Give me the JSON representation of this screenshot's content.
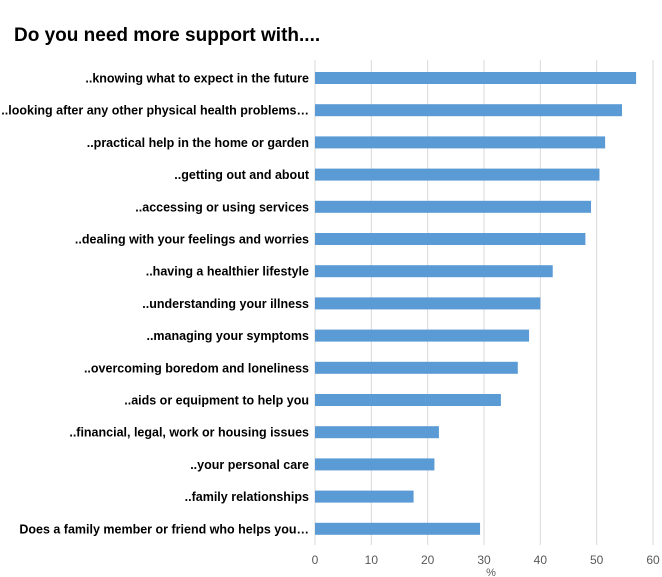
{
  "chart_data": {
    "type": "bar",
    "orientation": "horizontal",
    "title": "Do you need more support with....",
    "xlabel": "%",
    "ylabel": "",
    "xlim": [
      0,
      60
    ],
    "xticks": [
      0,
      10,
      20,
      30,
      40,
      50,
      60
    ],
    "grid": true,
    "bar_color": "#5b9bd5",
    "categories": [
      "..knowing what to expect in the future",
      "..looking after any other physical health problems…",
      "..practical help in the home or garden",
      "..getting out and about",
      "..accessing or using services",
      "..dealing with your feelings and worries",
      "..having a healthier lifestyle",
      "..understanding your illness",
      "..managing your symptoms",
      "..overcoming boredom and loneliness",
      "..aids or equipment to help you",
      "..financial, legal, work or housing issues",
      "..your personal care",
      "..family relationships",
      "Does a family member or friend who helps you…"
    ],
    "values": [
      57,
      54.5,
      51.5,
      50.5,
      49,
      48,
      42.2,
      40,
      38,
      36,
      33,
      22,
      21.2,
      17.5,
      29.3
    ]
  }
}
